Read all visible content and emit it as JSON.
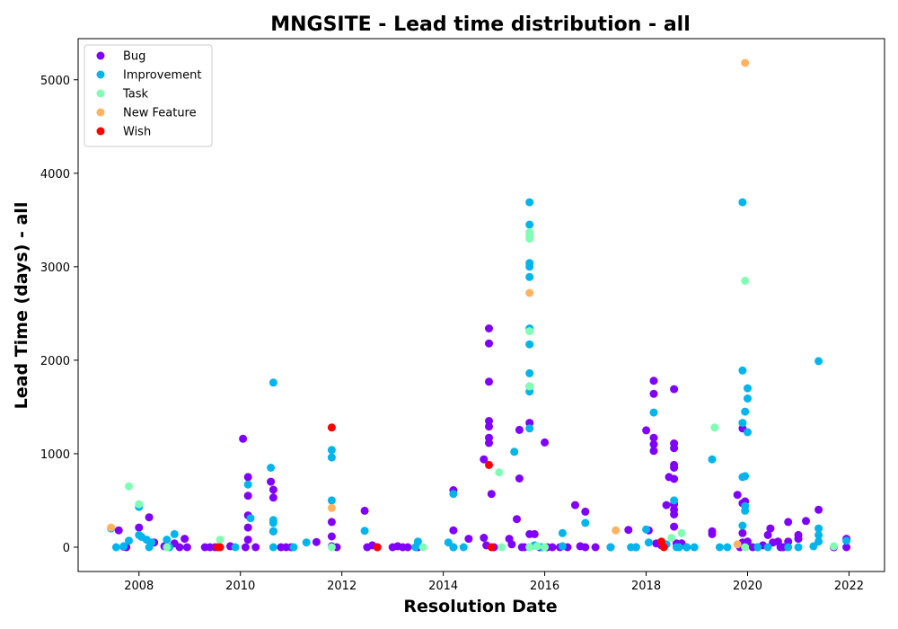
{
  "chart_data": {
    "type": "scatter",
    "title": "MNGSITE - Lead time distribution - all",
    "xlabel": "Resolution Date",
    "ylabel": "Lead Time (days) - all",
    "xlim": [
      2006.8,
      2022.7
    ],
    "ylim": [
      -260,
      5440
    ],
    "x_ticks": [
      2008,
      2010,
      2012,
      2014,
      2016,
      2018,
      2020,
      2022
    ],
    "x_tick_labels": [
      "2008",
      "2010",
      "2012",
      "2014",
      "2016",
      "2018",
      "2020",
      "2022"
    ],
    "y_ticks": [
      0,
      1000,
      2000,
      3000,
      4000,
      5000
    ],
    "y_tick_labels": [
      "0",
      "1000",
      "2000",
      "3000",
      "4000",
      "5000"
    ],
    "grid": false,
    "legend_position": "top-left",
    "series": [
      {
        "name": "Bug",
        "color": "#8000ff",
        "points": [
          [
            2007.6,
            180
          ],
          [
            2007.7,
            5
          ],
          [
            2007.75,
            0
          ],
          [
            2008.0,
            210
          ],
          [
            2008.2,
            320
          ],
          [
            2008.3,
            50
          ],
          [
            2008.5,
            10
          ],
          [
            2008.7,
            40
          ],
          [
            2008.8,
            0
          ],
          [
            2008.9,
            90
          ],
          [
            2008.95,
            0
          ],
          [
            2009.3,
            0
          ],
          [
            2009.4,
            0
          ],
          [
            2009.5,
            0
          ],
          [
            2009.8,
            10
          ],
          [
            2010.05,
            1160
          ],
          [
            2010.1,
            0
          ],
          [
            2010.15,
            750
          ],
          [
            2010.15,
            550
          ],
          [
            2010.15,
            340
          ],
          [
            2010.15,
            210
          ],
          [
            2010.15,
            80
          ],
          [
            2010.3,
            0
          ],
          [
            2010.6,
            700
          ],
          [
            2010.65,
            615
          ],
          [
            2010.65,
            530
          ],
          [
            2010.65,
            170
          ],
          [
            2010.8,
            0
          ],
          [
            2010.9,
            0
          ],
          [
            2011.0,
            0
          ],
          [
            2011.5,
            55
          ],
          [
            2011.8,
            270
          ],
          [
            2011.8,
            115
          ],
          [
            2011.8,
            10
          ],
          [
            2011.9,
            0
          ],
          [
            2012.45,
            390
          ],
          [
            2012.5,
            0
          ],
          [
            2012.6,
            20
          ],
          [
            2012.7,
            0
          ],
          [
            2013.0,
            0
          ],
          [
            2013.1,
            10
          ],
          [
            2013.2,
            0
          ],
          [
            2013.3,
            0
          ],
          [
            2013.5,
            0
          ],
          [
            2014.2,
            610
          ],
          [
            2014.2,
            180
          ],
          [
            2014.2,
            0
          ],
          [
            2014.5,
            90
          ],
          [
            2014.8,
            940
          ],
          [
            2014.8,
            100
          ],
          [
            2014.85,
            20
          ],
          [
            2014.9,
            2340
          ],
          [
            2014.9,
            2180
          ],
          [
            2014.9,
            1770
          ],
          [
            2014.9,
            1350
          ],
          [
            2014.9,
            1290
          ],
          [
            2014.9,
            1170
          ],
          [
            2014.9,
            1115
          ],
          [
            2014.95,
            570
          ],
          [
            2015.0,
            0
          ],
          [
            2015.3,
            90
          ],
          [
            2015.35,
            30
          ],
          [
            2015.45,
            300
          ],
          [
            2015.5,
            1255
          ],
          [
            2015.5,
            735
          ],
          [
            2015.55,
            0
          ],
          [
            2015.6,
            0
          ],
          [
            2015.7,
            1330
          ],
          [
            2015.7,
            140
          ],
          [
            2015.8,
            140
          ],
          [
            2015.9,
            0
          ],
          [
            2016.0,
            1120
          ],
          [
            2016.05,
            0
          ],
          [
            2016.15,
            0
          ],
          [
            2016.3,
            0
          ],
          [
            2016.45,
            0
          ],
          [
            2016.6,
            450
          ],
          [
            2016.7,
            10
          ],
          [
            2016.8,
            380
          ],
          [
            2016.8,
            0
          ],
          [
            2017.0,
            0
          ],
          [
            2017.3,
            0
          ],
          [
            2017.65,
            185
          ],
          [
            2017.8,
            0
          ],
          [
            2018.0,
            1250
          ],
          [
            2018.05,
            180
          ],
          [
            2018.15,
            1780
          ],
          [
            2018.15,
            1640
          ],
          [
            2018.15,
            1170
          ],
          [
            2018.15,
            1100
          ],
          [
            2018.15,
            1030
          ],
          [
            2018.2,
            40
          ],
          [
            2018.3,
            20
          ],
          [
            2018.4,
            450
          ],
          [
            2018.45,
            750
          ],
          [
            2018.55,
            1690
          ],
          [
            2018.55,
            1110
          ],
          [
            2018.55,
            1060
          ],
          [
            2018.55,
            880
          ],
          [
            2018.55,
            850
          ],
          [
            2018.55,
            730
          ],
          [
            2018.55,
            460
          ],
          [
            2018.55,
            400
          ],
          [
            2018.55,
            350
          ],
          [
            2018.55,
            220
          ],
          [
            2018.6,
            40
          ],
          [
            2018.7,
            40
          ],
          [
            2018.8,
            0
          ],
          [
            2019.3,
            170
          ],
          [
            2019.3,
            140
          ],
          [
            2019.8,
            560
          ],
          [
            2019.85,
            0
          ],
          [
            2019.9,
            1270
          ],
          [
            2019.9,
            470
          ],
          [
            2019.9,
            150
          ],
          [
            2019.9,
            50
          ],
          [
            2019.95,
            490
          ],
          [
            2020.0,
            60
          ],
          [
            2020.1,
            0
          ],
          [
            2020.2,
            0
          ],
          [
            2020.3,
            20
          ],
          [
            2020.4,
            130
          ],
          [
            2020.45,
            200
          ],
          [
            2020.5,
            50
          ],
          [
            2020.6,
            60
          ],
          [
            2020.65,
            0
          ],
          [
            2020.7,
            0
          ],
          [
            2020.8,
            270
          ],
          [
            2020.8,
            60
          ],
          [
            2021.0,
            130
          ],
          [
            2021.0,
            90
          ],
          [
            2021.15,
            280
          ],
          [
            2021.4,
            400
          ],
          [
            2021.7,
            0
          ],
          [
            2021.95,
            90
          ],
          [
            2021.95,
            0
          ]
        ]
      },
      {
        "name": "Improvement",
        "color": "#00b5eb",
        "points": [
          [
            2007.45,
            200
          ],
          [
            2007.55,
            0
          ],
          [
            2007.7,
            10
          ],
          [
            2007.8,
            70
          ],
          [
            2008.0,
            430
          ],
          [
            2008.0,
            130
          ],
          [
            2008.05,
            110
          ],
          [
            2008.15,
            80
          ],
          [
            2008.2,
            0
          ],
          [
            2008.25,
            50
          ],
          [
            2008.55,
            80
          ],
          [
            2008.6,
            0
          ],
          [
            2008.7,
            140
          ],
          [
            2009.9,
            0
          ],
          [
            2010.15,
            670
          ],
          [
            2010.2,
            310
          ],
          [
            2010.6,
            850
          ],
          [
            2010.65,
            1760
          ],
          [
            2010.65,
            290
          ],
          [
            2010.65,
            260
          ],
          [
            2010.65,
            170
          ],
          [
            2010.65,
            0
          ],
          [
            2011.05,
            0
          ],
          [
            2011.3,
            50
          ],
          [
            2011.8,
            1040
          ],
          [
            2011.8,
            960
          ],
          [
            2011.8,
            500
          ],
          [
            2012.45,
            175
          ],
          [
            2013.45,
            0
          ],
          [
            2013.5,
            60
          ],
          [
            2014.1,
            50
          ],
          [
            2014.2,
            570
          ],
          [
            2014.2,
            0
          ],
          [
            2014.4,
            0
          ],
          [
            2015.4,
            1020
          ],
          [
            2015.7,
            3690
          ],
          [
            2015.7,
            3450
          ],
          [
            2015.7,
            3040
          ],
          [
            2015.7,
            3000
          ],
          [
            2015.7,
            2890
          ],
          [
            2015.7,
            2340
          ],
          [
            2015.7,
            2170
          ],
          [
            2015.7,
            1860
          ],
          [
            2015.7,
            1720
          ],
          [
            2015.7,
            1665
          ],
          [
            2015.7,
            1270
          ],
          [
            2015.7,
            0
          ],
          [
            2015.8,
            20
          ],
          [
            2015.95,
            0
          ],
          [
            2016.35,
            150
          ],
          [
            2016.35,
            10
          ],
          [
            2016.8,
            260
          ],
          [
            2017.3,
            0
          ],
          [
            2017.7,
            0
          ],
          [
            2017.8,
            0
          ],
          [
            2018.0,
            190
          ],
          [
            2018.05,
            50
          ],
          [
            2018.15,
            1440
          ],
          [
            2018.4,
            30
          ],
          [
            2018.55,
            500
          ],
          [
            2018.6,
            0
          ],
          [
            2018.65,
            0
          ],
          [
            2018.8,
            0
          ],
          [
            2018.95,
            0
          ],
          [
            2019.3,
            940
          ],
          [
            2019.45,
            0
          ],
          [
            2019.6,
            0
          ],
          [
            2019.9,
            3690
          ],
          [
            2019.9,
            1890
          ],
          [
            2019.9,
            1330
          ],
          [
            2019.9,
            750
          ],
          [
            2019.9,
            230
          ],
          [
            2019.95,
            760
          ],
          [
            2019.95,
            440
          ],
          [
            2019.95,
            390
          ],
          [
            2019.95,
            1450
          ],
          [
            2020.0,
            1700
          ],
          [
            2020.0,
            1590
          ],
          [
            2020.0,
            1230
          ],
          [
            2020.2,
            0
          ],
          [
            2020.4,
            0
          ],
          [
            2020.8,
            0
          ],
          [
            2021.0,
            0
          ],
          [
            2021.3,
            10
          ],
          [
            2021.4,
            1990
          ],
          [
            2021.4,
            200
          ],
          [
            2021.4,
            130
          ],
          [
            2021.4,
            60
          ],
          [
            2021.95,
            70
          ]
        ]
      },
      {
        "name": "Task",
        "color": "#80ffb4",
        "points": [
          [
            2007.8,
            650
          ],
          [
            2008.0,
            460
          ],
          [
            2008.55,
            0
          ],
          [
            2009.6,
            80
          ],
          [
            2011.8,
            0
          ],
          [
            2013.6,
            0
          ],
          [
            2015.1,
            800
          ],
          [
            2015.15,
            0
          ],
          [
            2015.7,
            3370
          ],
          [
            2015.7,
            3330
          ],
          [
            2015.7,
            3300
          ],
          [
            2015.7,
            2310
          ],
          [
            2015.7,
            1720
          ],
          [
            2015.7,
            0
          ],
          [
            2015.85,
            10
          ],
          [
            2016.0,
            0
          ],
          [
            2018.5,
            100
          ],
          [
            2018.7,
            150
          ],
          [
            2019.35,
            1280
          ],
          [
            2019.95,
            2850
          ],
          [
            2019.95,
            0
          ],
          [
            2021.7,
            10
          ]
        ]
      },
      {
        "name": "New Feature",
        "color": "#ffb360",
        "points": [
          [
            2007.45,
            210
          ],
          [
            2011.8,
            420
          ],
          [
            2015.7,
            2720
          ],
          [
            2017.4,
            180
          ],
          [
            2019.8,
            30
          ],
          [
            2019.95,
            5180
          ]
        ]
      },
      {
        "name": "Wish",
        "color": "#ff0000",
        "points": [
          [
            2009.55,
            0
          ],
          [
            2009.6,
            0
          ],
          [
            2011.8,
            1280
          ],
          [
            2012.7,
            0
          ],
          [
            2014.9,
            880
          ],
          [
            2014.95,
            0
          ],
          [
            2018.3,
            60
          ],
          [
            2018.35,
            0
          ]
        ]
      }
    ]
  }
}
